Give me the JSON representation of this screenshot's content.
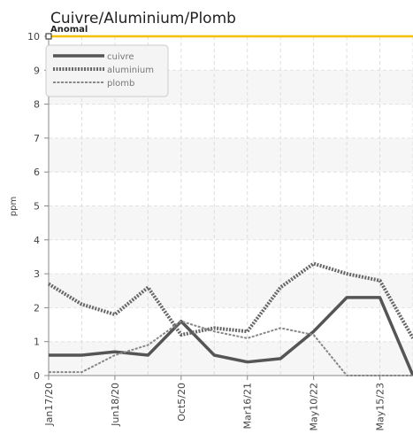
{
  "chart_data": {
    "type": "line",
    "title": "Cuivre/Aluminium/Plomb",
    "y_label": "ppm",
    "categories": [
      "Jan17/20",
      null,
      "Jun18/20",
      null,
      "Oct5/20",
      null,
      "Mar16/21",
      null,
      "May10/22",
      null,
      "May15/23",
      null
    ],
    "series": [
      {
        "name": "cuivre",
        "color": "#555555",
        "style": "solid",
        "values": [
          0.6,
          0.6,
          0.7,
          0.6,
          1.6,
          0.6,
          0.4,
          0.5,
          1.3,
          2.3,
          2.3,
          0
        ]
      },
      {
        "name": "aluminium",
        "color": "#666666",
        "style": "dotted",
        "values": [
          2.7,
          2.1,
          1.8,
          2.6,
          1.2,
          1.4,
          1.3,
          2.6,
          3.3,
          3.0,
          2.8,
          1.1
        ]
      },
      {
        "name": "plomb",
        "color": "#888888",
        "style": "dashed",
        "values": [
          0.1,
          0.1,
          0.6,
          0.9,
          1.6,
          1.3,
          1.1,
          1.4,
          1.2,
          0,
          0,
          0
        ]
      }
    ],
    "threshold": 10,
    "threshold_label": "Anomal",
    "threshold_color": "#f5c000",
    "ylim": [
      0,
      10
    ],
    "yticks": [
      0,
      1,
      2,
      3,
      4,
      5,
      6,
      7,
      8,
      9,
      10
    ],
    "grid": true,
    "legend": "upper left"
  }
}
